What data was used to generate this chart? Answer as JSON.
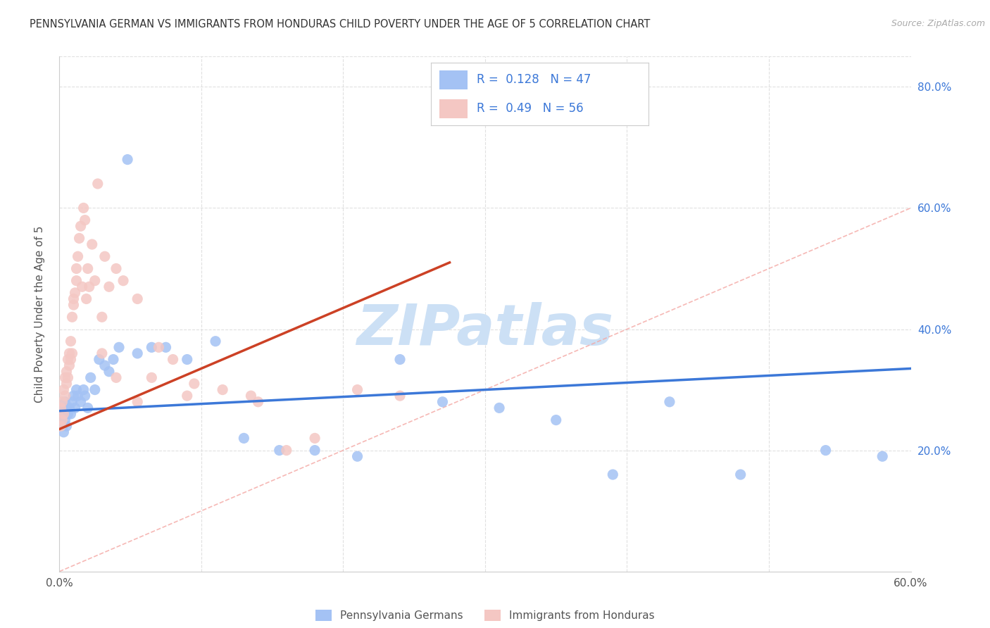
{
  "title": "PENNSYLVANIA GERMAN VS IMMIGRANTS FROM HONDURAS CHILD POVERTY UNDER THE AGE OF 5 CORRELATION CHART",
  "source": "Source: ZipAtlas.com",
  "ylabel": "Child Poverty Under the Age of 5",
  "xlim": [
    0.0,
    0.6
  ],
  "ylim": [
    0.0,
    0.85
  ],
  "blue_color": "#a4c2f4",
  "pink_color": "#f4c7c3",
  "blue_line_color": "#3c78d8",
  "pink_line_color": "#cc4125",
  "diagonal_color": "#f4a7a3",
  "grid_color": "#e0e0e0",
  "R_blue": 0.128,
  "N_blue": 47,
  "R_pink": 0.49,
  "N_pink": 56,
  "legend_label_blue": "Pennsylvania Germans",
  "legend_label_pink": "Immigrants from Honduras",
  "blue_scatter_x": [
    0.001,
    0.002,
    0.002,
    0.003,
    0.003,
    0.004,
    0.004,
    0.005,
    0.005,
    0.006,
    0.007,
    0.008,
    0.009,
    0.01,
    0.011,
    0.012,
    0.013,
    0.015,
    0.017,
    0.018,
    0.02,
    0.022,
    0.025,
    0.028,
    0.032,
    0.035,
    0.038,
    0.042,
    0.048,
    0.055,
    0.065,
    0.075,
    0.09,
    0.11,
    0.13,
    0.155,
    0.18,
    0.21,
    0.24,
    0.27,
    0.31,
    0.35,
    0.39,
    0.43,
    0.48,
    0.54,
    0.58
  ],
  "blue_scatter_y": [
    0.25,
    0.27,
    0.24,
    0.26,
    0.23,
    0.28,
    0.25,
    0.27,
    0.24,
    0.26,
    0.27,
    0.26,
    0.28,
    0.29,
    0.27,
    0.3,
    0.29,
    0.28,
    0.3,
    0.29,
    0.27,
    0.32,
    0.3,
    0.35,
    0.34,
    0.33,
    0.35,
    0.37,
    0.68,
    0.36,
    0.37,
    0.37,
    0.35,
    0.38,
    0.22,
    0.2,
    0.2,
    0.19,
    0.35,
    0.28,
    0.27,
    0.25,
    0.16,
    0.28,
    0.16,
    0.2,
    0.19
  ],
  "pink_scatter_x": [
    0.001,
    0.001,
    0.002,
    0.002,
    0.003,
    0.003,
    0.004,
    0.004,
    0.005,
    0.005,
    0.006,
    0.006,
    0.007,
    0.007,
    0.008,
    0.008,
    0.009,
    0.009,
    0.01,
    0.01,
    0.011,
    0.012,
    0.012,
    0.013,
    0.014,
    0.015,
    0.016,
    0.017,
    0.018,
    0.019,
    0.02,
    0.021,
    0.023,
    0.025,
    0.027,
    0.03,
    0.032,
    0.035,
    0.04,
    0.045,
    0.055,
    0.065,
    0.08,
    0.095,
    0.115,
    0.135,
    0.16,
    0.18,
    0.21,
    0.24,
    0.03,
    0.04,
    0.055,
    0.07,
    0.09,
    0.14
  ],
  "pink_scatter_y": [
    0.24,
    0.27,
    0.25,
    0.28,
    0.26,
    0.3,
    0.29,
    0.32,
    0.31,
    0.33,
    0.35,
    0.32,
    0.34,
    0.36,
    0.35,
    0.38,
    0.36,
    0.42,
    0.45,
    0.44,
    0.46,
    0.48,
    0.5,
    0.52,
    0.55,
    0.57,
    0.47,
    0.6,
    0.58,
    0.45,
    0.5,
    0.47,
    0.54,
    0.48,
    0.64,
    0.42,
    0.52,
    0.47,
    0.5,
    0.48,
    0.45,
    0.32,
    0.35,
    0.31,
    0.3,
    0.29,
    0.2,
    0.22,
    0.3,
    0.29,
    0.36,
    0.32,
    0.28,
    0.37,
    0.29,
    0.28
  ],
  "blue_line_x0": 0.0,
  "blue_line_x1": 0.6,
  "blue_line_y0": 0.265,
  "blue_line_y1": 0.335,
  "pink_line_x0": 0.0,
  "pink_line_x1": 0.275,
  "pink_line_y0": 0.235,
  "pink_line_y1": 0.51,
  "watermark_text": "ZIPatlas",
  "watermark_color": "#cce0f5"
}
